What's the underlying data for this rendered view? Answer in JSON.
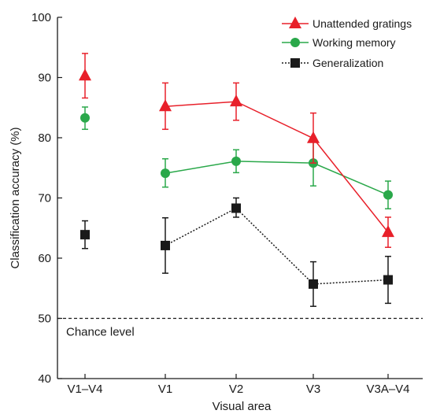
{
  "chart_data": {
    "type": "line",
    "xlabel": "Visual area",
    "ylabel": "Classification accuracy (%)",
    "categories": [
      "V1–V4",
      "V1",
      "V2",
      "V3",
      "V3A–V4"
    ],
    "ylim": [
      40,
      100
    ],
    "yticks": [
      40,
      50,
      60,
      70,
      80,
      90,
      100
    ],
    "grid": false,
    "legend_position": "top-right",
    "series": [
      {
        "name": "Unattended gratings",
        "color": "#e8202a",
        "marker": "triangle",
        "line_style": "solid",
        "values": [
          90.3,
          85.2,
          86.0,
          79.9,
          64.3
        ],
        "err_low": [
          86.6,
          81.4,
          82.9,
          75.8,
          61.8
        ],
        "err_high": [
          94.0,
          89.1,
          89.1,
          84.1,
          66.8
        ],
        "connect_from_index": 1
      },
      {
        "name": "Working memory",
        "color": "#2aa84a",
        "marker": "circle",
        "line_style": "solid",
        "values": [
          83.3,
          74.1,
          76.1,
          75.8,
          70.5
        ],
        "err_low": [
          81.4,
          71.8,
          74.2,
          72.0,
          68.2
        ],
        "err_high": [
          85.1,
          76.5,
          78.0,
          79.7,
          72.8
        ],
        "connect_from_index": 1
      },
      {
        "name": "Generalization",
        "color": "#1a1a1a",
        "marker": "square",
        "line_style": "dotted",
        "values": [
          63.9,
          62.1,
          68.3,
          55.7,
          56.4
        ],
        "err_low": [
          61.6,
          57.5,
          66.8,
          52.0,
          52.5
        ],
        "err_high": [
          66.2,
          66.7,
          70.0,
          59.4,
          60.3
        ],
        "connect_from_index": 1
      }
    ],
    "reference_line": {
      "value": 50,
      "label": "Chance level",
      "style": "dashed"
    }
  }
}
